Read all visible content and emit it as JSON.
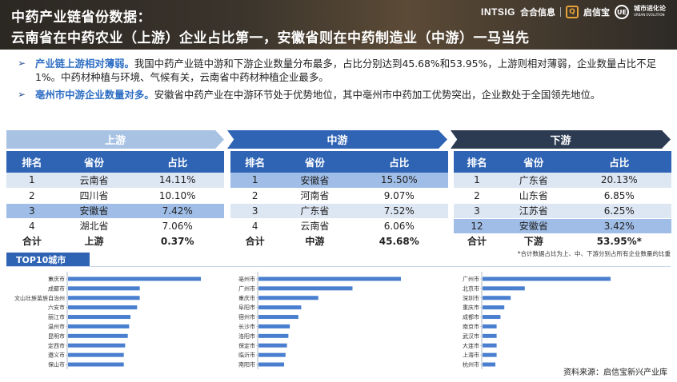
{
  "header": {
    "title_line1": "中药产业链省份数据：",
    "title_line2": "云南省在中药农业（上游）企业占比第一，安徽省则在中药制造业（中游）一马当先",
    "brand_intsig": "INTSIG",
    "brand_hehe": "合合信息",
    "brand_qixinbao": "启信宝",
    "brand_city": "城市进化论",
    "brand_city_sub": "URBAN EVOLUTION"
  },
  "bullets": [
    {
      "highlight": "产业链上游相对薄弱。",
      "text": "我国中药产业链中游和下游企业数量分布最多，占比分别达到45.68%和53.95%，上游则相对薄弱，企业数量占比不足1%。中药材种植与环境、气候有关，云南省中药材种植企业最多。"
    },
    {
      "highlight": "亳州市中游企业数量对多。",
      "text": "安徽省中药产业在中游环节处于优势地位，其中亳州市中药加工优势突出，企业数处于全国领先地位。"
    }
  ],
  "tables": {
    "headers": {
      "rank": "排名",
      "province": "省份",
      "share": "占比"
    },
    "upstream": {
      "banner": "上游",
      "rows": [
        {
          "rank": "1",
          "province": "云南省",
          "share": "14.11%"
        },
        {
          "rank": "2",
          "province": "四川省",
          "share": "10.10%"
        },
        {
          "rank": "3",
          "province": "安徽省",
          "share": "7.42%"
        },
        {
          "rank": "4",
          "province": "湖北省",
          "share": "7.06%"
        }
      ],
      "total": {
        "label": "合计",
        "name": "上游",
        "share": "0.37%"
      }
    },
    "midstream": {
      "banner": "中游",
      "rows": [
        {
          "rank": "1",
          "province": "安徽省",
          "share": "15.50%"
        },
        {
          "rank": "2",
          "province": "河南省",
          "share": "9.07%"
        },
        {
          "rank": "3",
          "province": "广东省",
          "share": "7.52%"
        },
        {
          "rank": "4",
          "province": "云南省",
          "share": "6.06%"
        }
      ],
      "total": {
        "label": "合计",
        "name": "中游",
        "share": "45.68%"
      }
    },
    "downstream": {
      "banner": "下游",
      "rows": [
        {
          "rank": "1",
          "province": "广东省",
          "share": "20.13%"
        },
        {
          "rank": "2",
          "province": "山东省",
          "share": "6.85%"
        },
        {
          "rank": "3",
          "province": "江苏省",
          "share": "6.25%"
        },
        {
          "rank": "12",
          "province": "安徽省",
          "share": "3.42%"
        }
      ],
      "total": {
        "label": "合计",
        "name": "下游",
        "share": "53.95%*"
      }
    }
  },
  "footnote": "*合计数据占比为上、中、下游分别占所有企业数量的比重",
  "top10_label": "TOP10城市",
  "source": "资料来源：启信宝新兴产业库",
  "colors": {
    "bar": "#4a7fd0",
    "header_blue": "#2f64b5"
  },
  "chart_data": [
    {
      "type": "bar",
      "orientation": "horizontal",
      "categories": [
        "重庆市",
        "成都市",
        "文山壮族苗族自治州",
        "六安市",
        "丽江市",
        "温州市",
        "昆明市",
        "定西市",
        "遵义市",
        "保山市"
      ],
      "values": [
        100,
        54,
        54,
        52,
        47,
        46,
        45,
        43,
        42,
        42
      ]
    },
    {
      "type": "bar",
      "orientation": "horizontal",
      "categories": [
        "亳州市",
        "广州市",
        "重庆市",
        "阜阳市",
        "宿州市",
        "长沙市",
        "洛阳市",
        "保定市",
        "临沂市",
        "南阳市"
      ],
      "values": [
        100,
        66,
        42,
        30,
        28,
        22,
        21,
        20,
        19,
        18
      ]
    },
    {
      "type": "bar",
      "orientation": "horizontal",
      "categories": [
        "广州市",
        "北京市",
        "深圳市",
        "重庆市",
        "成都市",
        "南京市",
        "武汉市",
        "大连市",
        "上海市",
        "杭州市"
      ],
      "values": [
        100,
        33,
        22,
        17,
        14,
        11,
        11,
        11,
        11,
        10
      ]
    }
  ]
}
